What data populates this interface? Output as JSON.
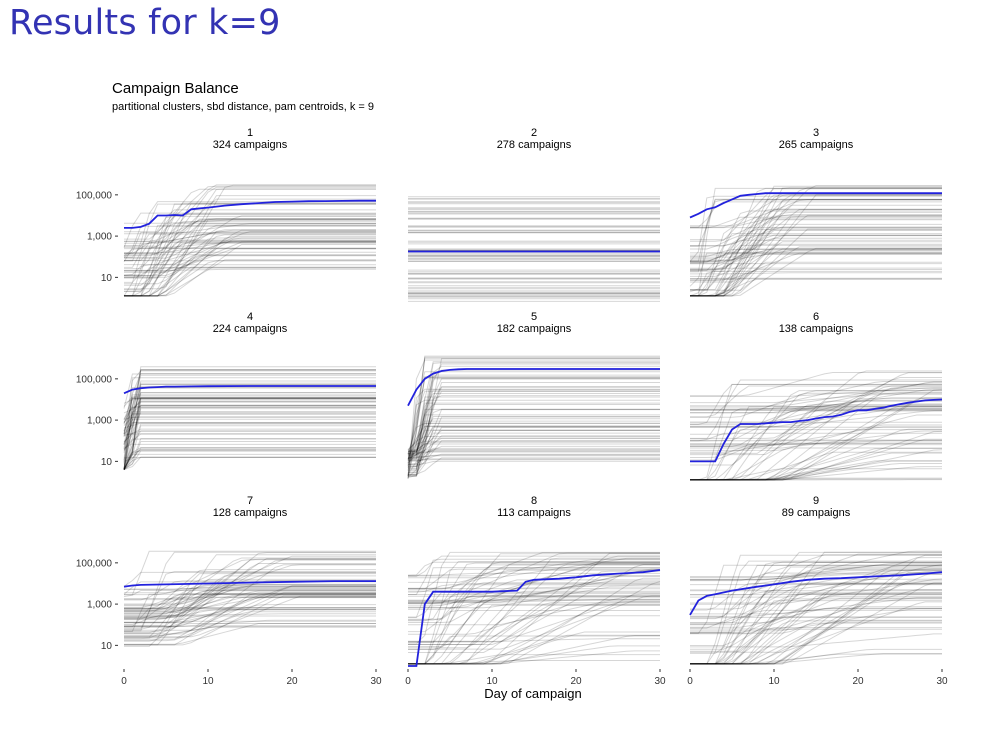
{
  "slide": {
    "title": "Results for k=9"
  },
  "chart_data": {
    "type": "line",
    "title": "Campaign Balance",
    "subtitle": "partitional clusters, sbd distance, pam centroids, k = 9",
    "xlabel": "Day of campaign",
    "ylabel": "",
    "y_scale": "log10",
    "ylim": [
      1,
      2000000
    ],
    "xlim": [
      0,
      30
    ],
    "y_ticks": [
      {
        "value": 10,
        "label": "10"
      },
      {
        "value": 1000,
        "label": "1,000"
      },
      {
        "value": 100000,
        "label": "100,000"
      }
    ],
    "x_ticks": [
      {
        "value": 0,
        "label": "0"
      },
      {
        "value": 10,
        "label": "10"
      },
      {
        "value": 20,
        "label": "20"
      },
      {
        "value": 30,
        "label": "30"
      }
    ],
    "grid": false,
    "colors": {
      "centroid": "#2222dd",
      "member": "#000000"
    },
    "facets": [
      {
        "cluster": "1",
        "count_label": "324 campaigns",
        "centroid": {
          "x": [
            0,
            1,
            2,
            3,
            4,
            5,
            6,
            7,
            8,
            9,
            10,
            12,
            14,
            16,
            18,
            20,
            22,
            24,
            26,
            28,
            30
          ],
          "y": [
            2500,
            2500,
            2800,
            4000,
            10000,
            10000,
            10500,
            10000,
            20000,
            22000,
            24000,
            30000,
            35000,
            40000,
            45000,
            47000,
            49000,
            50000,
            51000,
            52000,
            52000
          ]
        }
      },
      {
        "cluster": "2",
        "count_label": "278 campaigns",
        "centroid": {
          "x": [
            0,
            30
          ],
          "y": [
            180,
            180
          ]
        }
      },
      {
        "cluster": "3",
        "count_label": "265 campaigns",
        "centroid": {
          "x": [
            0,
            1,
            2,
            3,
            4,
            5,
            6,
            7,
            8,
            9,
            10,
            15,
            20,
            25,
            30
          ],
          "y": [
            8000,
            12000,
            20000,
            25000,
            40000,
            60000,
            90000,
            100000,
            110000,
            120000,
            120000,
            120000,
            120000,
            120000,
            120000
          ]
        }
      },
      {
        "cluster": "4",
        "count_label": "224 campaigns",
        "centroid": {
          "x": [
            0,
            1,
            2,
            3,
            4,
            5,
            6,
            8,
            10,
            15,
            20,
            30
          ],
          "y": [
            20000,
            30000,
            35000,
            38000,
            40000,
            42000,
            42000,
            43000,
            44000,
            45000,
            45000,
            45000
          ]
        }
      },
      {
        "cluster": "5",
        "count_label": "182 campaigns",
        "centroid": {
          "x": [
            0,
            1,
            2,
            3,
            4,
            5,
            6,
            7,
            8,
            10,
            15,
            20,
            30
          ],
          "y": [
            5000,
            30000,
            100000,
            180000,
            240000,
            270000,
            290000,
            300000,
            300000,
            300000,
            300000,
            300000,
            300000
          ]
        }
      },
      {
        "cluster": "6",
        "count_label": "138 campaigns",
        "centroid": {
          "x": [
            0,
            1,
            2,
            3,
            4,
            5,
            6,
            7,
            8,
            9,
            10,
            11,
            12,
            13,
            14,
            15,
            16,
            17,
            18,
            19,
            20,
            21,
            22,
            23,
            24,
            25,
            26,
            27,
            28,
            29,
            30
          ],
          "y": [
            10,
            10,
            10,
            10,
            70,
            350,
            650,
            650,
            650,
            700,
            750,
            800,
            800,
            900,
            1000,
            1200,
            1400,
            1500,
            1800,
            2500,
            3000,
            3000,
            3500,
            4000,
            5000,
            6000,
            7000,
            8000,
            9000,
            9500,
            10000
          ]
        }
      },
      {
        "cluster": "7",
        "count_label": "128 campaigns",
        "centroid": {
          "x": [
            0,
            1,
            2,
            5,
            10,
            15,
            20,
            25,
            30
          ],
          "y": [
            7000,
            8000,
            8500,
            9000,
            10000,
            11000,
            12000,
            13000,
            13000
          ]
        }
      },
      {
        "cluster": "8",
        "count_label": "113 campaigns",
        "centroid": {
          "x": [
            0,
            1,
            2,
            3,
            5,
            10,
            13,
            14,
            15,
            18,
            20,
            22,
            25,
            28,
            30
          ],
          "y": [
            1,
            1,
            1000,
            4000,
            4000,
            4000,
            4500,
            12000,
            15000,
            17000,
            20000,
            25000,
            30000,
            35000,
            45000
          ]
        }
      },
      {
        "cluster": "9",
        "count_label": "89 campaigns",
        "centroid": {
          "x": [
            0,
            1,
            2,
            3,
            5,
            8,
            10,
            12,
            14,
            16,
            18,
            20,
            22,
            25,
            28,
            30
          ],
          "y": [
            300,
            1500,
            2500,
            3000,
            4500,
            7000,
            9000,
            12000,
            15000,
            17000,
            18000,
            20000,
            22000,
            25000,
            30000,
            35000
          ]
        }
      }
    ]
  }
}
